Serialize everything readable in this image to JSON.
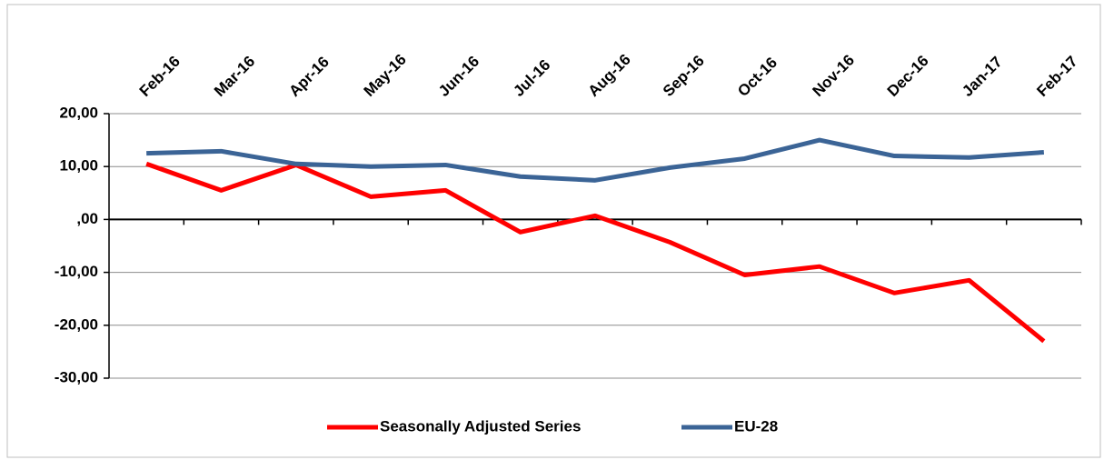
{
  "chart_data": {
    "type": "line",
    "categories": [
      "Feb-16",
      "Mar-16",
      "Apr-16",
      "May-16",
      "Jun-16",
      "Jul-16",
      "Aug-16",
      "Sep-16",
      "Oct-16",
      "Nov-16",
      "Dec-16",
      "Jan-17",
      "Feb-17"
    ],
    "series": [
      {
        "name": "Seasonally Adjusted Series",
        "color": "#ff0000",
        "values": [
          10.5,
          5.5,
          10.3,
          4.3,
          5.5,
          -2.4,
          0.7,
          -4.3,
          -10.5,
          -8.9,
          -13.9,
          -11.5,
          -23.0
        ]
      },
      {
        "name": "EU-28",
        "color": "#3b6496",
        "values": [
          12.5,
          12.9,
          10.5,
          10.0,
          10.3,
          8.1,
          7.4,
          9.8,
          11.5,
          15.0,
          12.0,
          11.7,
          12.7
        ]
      }
    ],
    "ylim": [
      -30,
      20
    ],
    "yticks": [
      {
        "value": -30,
        "label": "-30,00"
      },
      {
        "value": -20,
        "label": "-20,00"
      },
      {
        "value": -10,
        "label": "-10,00"
      },
      {
        "value": 0,
        "label": ",00"
      },
      {
        "value": 10,
        "label": "10,00"
      },
      {
        "value": 20,
        "label": "20,00"
      }
    ],
    "grid": true,
    "legend": "bottom"
  }
}
